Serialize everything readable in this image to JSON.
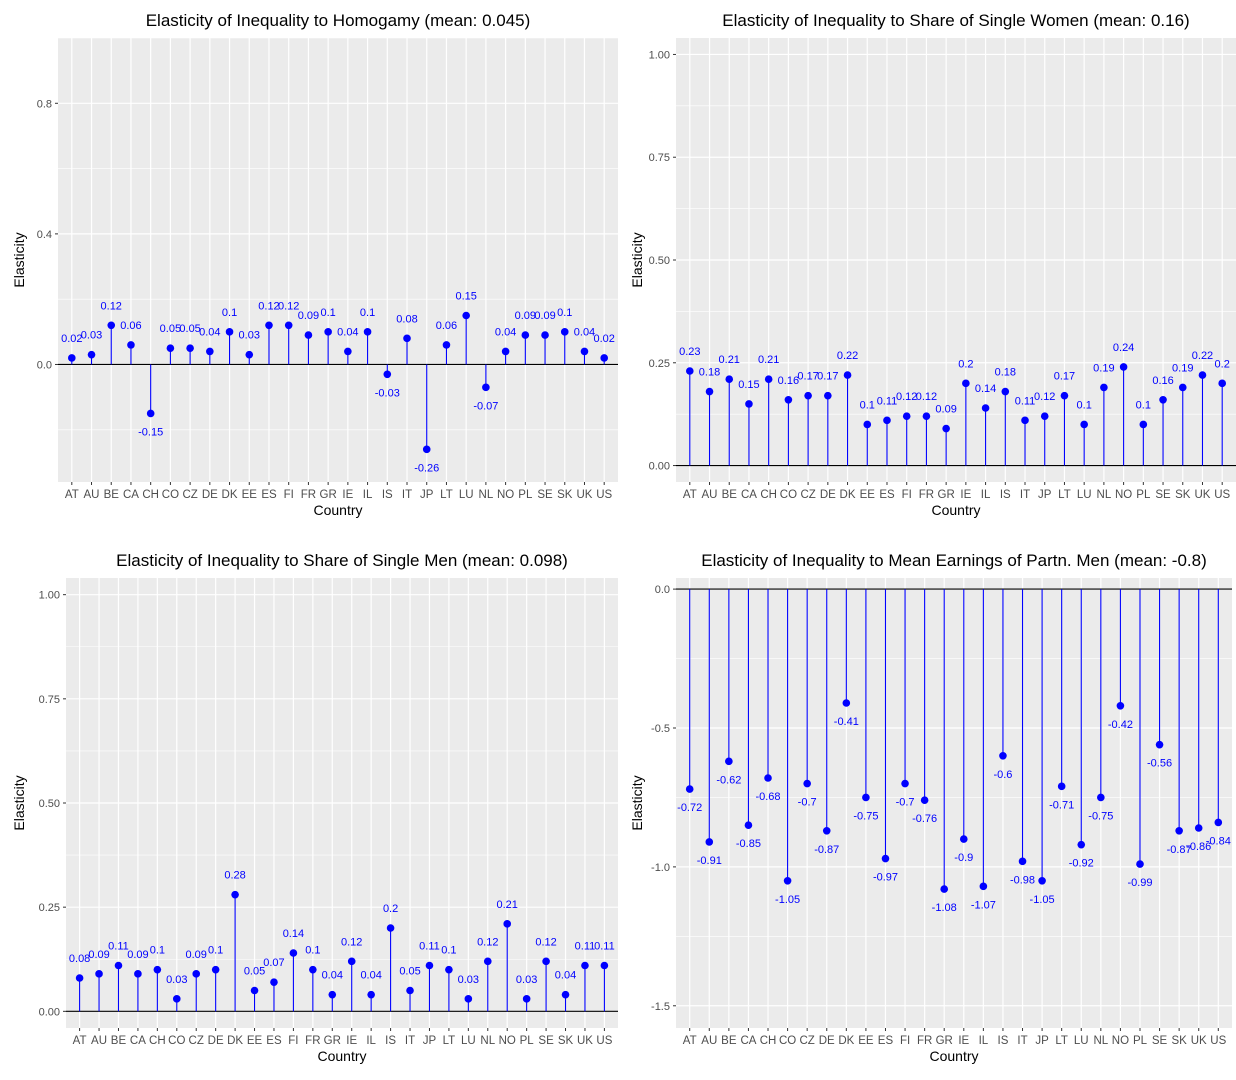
{
  "colors": {
    "accent": "#0000FF",
    "panel_bg": "#EBEBEB",
    "grid": "#FFFFFF",
    "zero_line": "#000000"
  },
  "chart_data": [
    {
      "type": "lollipop",
      "title": "Elasticity of Inequality to Homogamy (mean: 0.045)",
      "xlabel": "Country",
      "ylabel": "Elasticity",
      "ylim": [
        -0.36,
        1.0
      ],
      "yticks": [
        0.0,
        0.4,
        0.8
      ],
      "ytick_labels": [
        "0.0",
        "0.4",
        "0.8"
      ],
      "grid": true,
      "categories": [
        "AT",
        "AU",
        "BE",
        "CA",
        "CH",
        "CO",
        "CZ",
        "DE",
        "DK",
        "EE",
        "ES",
        "FI",
        "FR",
        "GR",
        "IE",
        "IL",
        "IS",
        "IT",
        "JP",
        "LT",
        "LU",
        "NL",
        "NO",
        "PL",
        "SE",
        "SK",
        "UK",
        "US"
      ],
      "values": [
        0.02,
        0.03,
        0.12,
        0.06,
        -0.15,
        0.05,
        0.05,
        0.04,
        0.1,
        0.03,
        0.12,
        0.12,
        0.09,
        0.1,
        0.04,
        0.1,
        -0.03,
        0.08,
        -0.26,
        0.06,
        0.15,
        -0.07,
        0.04,
        0.09,
        0.09,
        0.1,
        0.04,
        0.02
      ],
      "data_labels": [
        "0.02",
        "0.03",
        "0.12",
        "0.06",
        "-0.15",
        "0.05",
        "0.05",
        "0.04",
        "0.1",
        "0.03",
        "0.12",
        "0.12",
        "0.09",
        "0.1",
        "0.04",
        "0.1",
        "-0.03",
        "0.08",
        "-0.26",
        "0.06",
        "0.15",
        "-0.07",
        "0.04",
        "0.09",
        "0.09",
        "0.1",
        "0.04",
        "0.02"
      ]
    },
    {
      "type": "lollipop",
      "title": "Elasticity of Inequality to Share of Single Women (mean: 0.16)",
      "xlabel": "Country",
      "ylabel": "Elasticity",
      "ylim": [
        -0.04,
        1.04
      ],
      "yticks": [
        0.0,
        0.25,
        0.5,
        0.75,
        1.0
      ],
      "ytick_labels": [
        "0.00",
        "0.25",
        "0.50",
        "0.75",
        "1.00"
      ],
      "grid": true,
      "categories": [
        "AT",
        "AU",
        "BE",
        "CA",
        "CH",
        "CO",
        "CZ",
        "DE",
        "DK",
        "EE",
        "ES",
        "FI",
        "FR",
        "GR",
        "IE",
        "IL",
        "IS",
        "IT",
        "JP",
        "LT",
        "LU",
        "NL",
        "NO",
        "PL",
        "SE",
        "SK",
        "UK",
        "US"
      ],
      "values": [
        0.23,
        0.18,
        0.21,
        0.15,
        0.21,
        0.16,
        0.17,
        0.17,
        0.22,
        0.1,
        0.11,
        0.12,
        0.12,
        0.09,
        0.2,
        0.14,
        0.18,
        0.11,
        0.12,
        0.17,
        0.1,
        0.19,
        0.24,
        0.1,
        0.16,
        0.19,
        0.22,
        0.2
      ],
      "data_labels": [
        "0.23",
        "0.18",
        "0.21",
        "0.15",
        "0.21",
        "0.16",
        "0.17",
        "0.17",
        "0.22",
        "0.1",
        "0.11",
        "0.12",
        "0.12",
        "0.09",
        "0.2",
        "0.14",
        "0.18",
        "0.11",
        "0.12",
        "0.17",
        "0.1",
        "0.19",
        "0.24",
        "0.1",
        "0.16",
        "0.19",
        "0.22",
        "0.2"
      ]
    },
    {
      "type": "lollipop",
      "title": "Elasticity of Inequality to Share of Single Men (mean: 0.098)",
      "xlabel": "Country",
      "ylabel": "Elasticity",
      "ylim": [
        -0.04,
        1.04
      ],
      "yticks": [
        0.0,
        0.25,
        0.5,
        0.75,
        1.0
      ],
      "ytick_labels": [
        "0.00",
        "0.25",
        "0.50",
        "0.75",
        "1.00"
      ],
      "grid": true,
      "categories": [
        "AT",
        "AU",
        "BE",
        "CA",
        "CH",
        "CO",
        "CZ",
        "DE",
        "DK",
        "EE",
        "ES",
        "FI",
        "FR",
        "GR",
        "IE",
        "IL",
        "IS",
        "IT",
        "JP",
        "LT",
        "LU",
        "NL",
        "NO",
        "PL",
        "SE",
        "SK",
        "UK",
        "US"
      ],
      "values": [
        0.08,
        0.09,
        0.11,
        0.09,
        0.1,
        0.03,
        0.09,
        0.1,
        0.28,
        0.05,
        0.07,
        0.14,
        0.1,
        0.04,
        0.12,
        0.04,
        0.2,
        0.05,
        0.11,
        0.1,
        0.03,
        0.12,
        0.21,
        0.03,
        0.12,
        0.04,
        0.11,
        0.11
      ],
      "data_labels": [
        "0.08",
        "0.09",
        "0.11",
        "0.09",
        "0.1",
        "0.03",
        "0.09",
        "0.1",
        "0.28",
        "0.05",
        "0.07",
        "0.14",
        "0.1",
        "0.04",
        "0.12",
        "0.04",
        "0.2",
        "0.05",
        "0.11",
        "0.1",
        "0.03",
        "0.12",
        "0.21",
        "0.03",
        "0.12",
        "0.04",
        "0.11",
        "0.11"
      ]
    },
    {
      "type": "lollipop",
      "title": "Elasticity of Inequality to Mean Earnings of Partn. Men (mean: -0.8)",
      "xlabel": "Country",
      "ylabel": "Elasticity",
      "ylim": [
        -1.58,
        0.04
      ],
      "yticks": [
        0.0,
        -0.5,
        -1.0,
        -1.5
      ],
      "ytick_labels": [
        "0.0",
        "-0.5",
        "-1.0",
        "-1.5"
      ],
      "grid": true,
      "categories": [
        "AT",
        "AU",
        "BE",
        "CA",
        "CH",
        "CO",
        "CZ",
        "DE",
        "DK",
        "EE",
        "ES",
        "FI",
        "FR",
        "GR",
        "IE",
        "IL",
        "IS",
        "IT",
        "JP",
        "LT",
        "LU",
        "NL",
        "NO",
        "PL",
        "SE",
        "SK",
        "UK",
        "US"
      ],
      "values": [
        -0.72,
        -0.91,
        -0.62,
        -0.85,
        -0.68,
        -1.05,
        -0.7,
        -0.87,
        -0.41,
        -0.75,
        -0.97,
        -0.7,
        -0.76,
        -1.08,
        -0.9,
        -1.07,
        -0.6,
        -0.98,
        -1.05,
        -0.71,
        -0.92,
        -0.75,
        -0.42,
        -0.99,
        -0.56,
        -0.87,
        -0.86,
        -0.84
      ],
      "data_labels": [
        "-0.72",
        "-0.91",
        "-0.62",
        "-0.85",
        "-0.68",
        "-1.05",
        "-0.7",
        "-0.87",
        "-0.41",
        "-0.75",
        "-0.97",
        "-0.7",
        "-0.76",
        "-1.08",
        "-0.9",
        "-1.07",
        "-0.6",
        "-0.98",
        "-1.05",
        "-0.71",
        "-0.92",
        "-0.75",
        "-0.42",
        "-0.99",
        "-0.56",
        "-0.87",
        "-0.86",
        "-0.84"
      ]
    }
  ]
}
